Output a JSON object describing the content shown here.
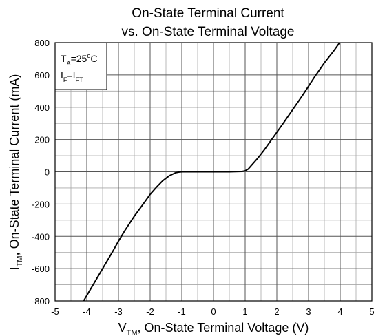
{
  "chart_data": {
    "type": "line",
    "title_line1": "On-State Terminal Current",
    "title_line2": "vs. On-State Terminal Voltage",
    "xlabel": {
      "main": "V",
      "sub": "TM",
      "rest": ", On-State Terminal Voltage (V)"
    },
    "ylabel": {
      "main": "I",
      "sub": "TM",
      "rest": ", On-State Terminal Current (mA)"
    },
    "xlim": [
      -5,
      5
    ],
    "ylim": [
      -800,
      800
    ],
    "x_ticks": [
      "-5",
      "-4",
      "-3",
      "-2",
      "-1",
      "0",
      "1",
      "2",
      "3",
      "4",
      "5"
    ],
    "y_ticks": [
      "800",
      "600",
      "400",
      "200",
      "0",
      "-200",
      "-400",
      "-600",
      "-800"
    ],
    "grid": "on",
    "conditions": {
      "line1": {
        "main": "T",
        "sub": "A",
        "rest": "=25",
        "sup": "o",
        "end": "C"
      },
      "line2": {
        "a": "I",
        "asub": "F",
        "eq": "=I",
        "bsub": "FT"
      }
    },
    "series": [
      {
        "x": [
          -4.1,
          -3.8,
          -3.5,
          -3.2,
          -3.0,
          -2.8,
          -2.5,
          -2.2,
          -2.0,
          -1.8,
          -1.6,
          -1.4,
          -1.2,
          -1.1,
          -1.0,
          -0.9,
          -0.5,
          0.0,
          0.5,
          0.9,
          1.0,
          1.1,
          1.2,
          1.4,
          1.6,
          1.8,
          2.0,
          2.2,
          2.5,
          2.8,
          3.0,
          3.2,
          3.5,
          3.8,
          4.0,
          4.2
        ],
        "y": [
          -800,
          -700,
          -600,
          -500,
          -430,
          -365,
          -275,
          -195,
          -140,
          -95,
          -55,
          -25,
          -6,
          -2,
          0,
          0,
          0,
          0,
          0,
          2,
          6,
          18,
          40,
          85,
          135,
          190,
          245,
          300,
          385,
          470,
          530,
          590,
          675,
          750,
          805,
          850
        ]
      }
    ]
  }
}
